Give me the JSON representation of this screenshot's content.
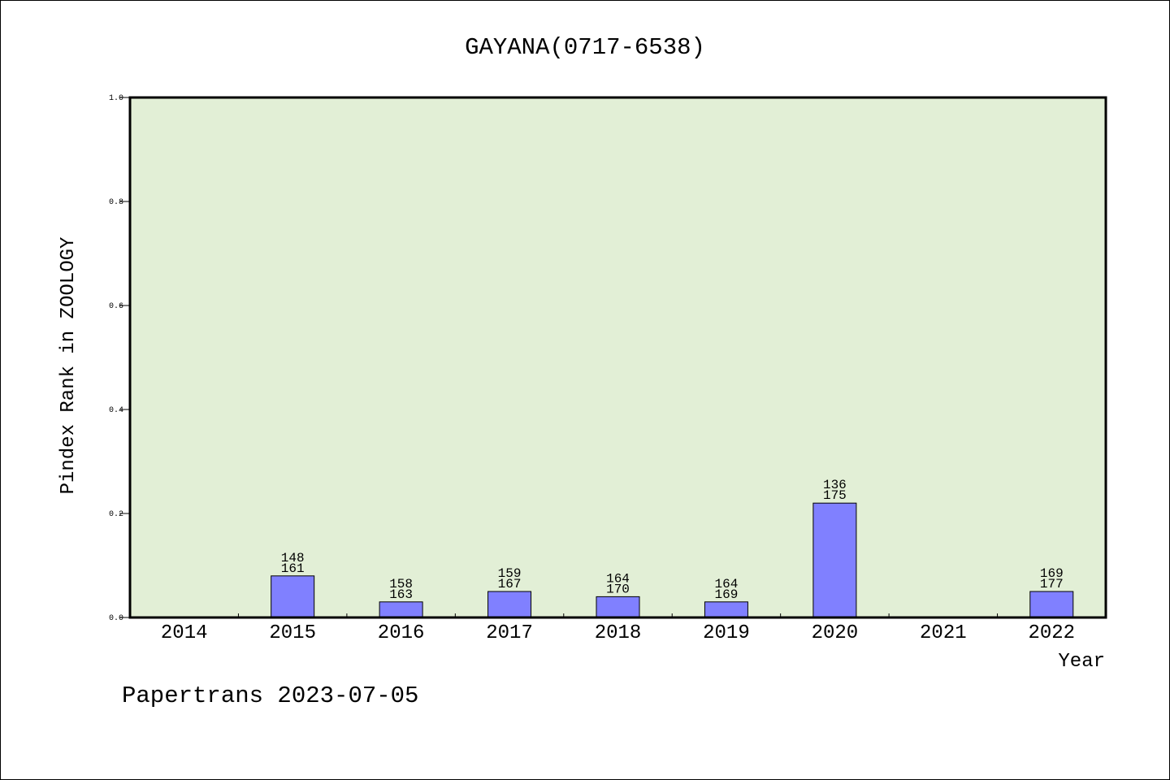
{
  "chart_data": {
    "type": "bar",
    "title": "GAYANA(0717-6538)",
    "xlabel": "Year",
    "ylabel": "Pindex Rank in ZOOLOGY",
    "ylim": [
      0,
      1.0
    ],
    "yticks": [
      "0.0",
      "0.2",
      "0.4",
      "0.6",
      "0.8",
      "1.0"
    ],
    "categories": [
      "2014",
      "2015",
      "2016",
      "2017",
      "2018",
      "2019",
      "2020",
      "2021",
      "2022"
    ],
    "values": [
      null,
      0.08,
      0.03,
      0.05,
      0.04,
      0.03,
      0.22,
      null,
      0.05
    ],
    "rank_labels": [
      null,
      "148",
      "158",
      "159",
      "164",
      "164",
      "136",
      null,
      "169"
    ],
    "total_labels": [
      null,
      "161",
      "163",
      "167",
      "170",
      "169",
      "175",
      null,
      "177"
    ],
    "grid": false,
    "colors": {
      "plot_bg": "#e2efd6",
      "bar": "#8080ff"
    }
  },
  "footer": "Papertrans 2023-07-05"
}
